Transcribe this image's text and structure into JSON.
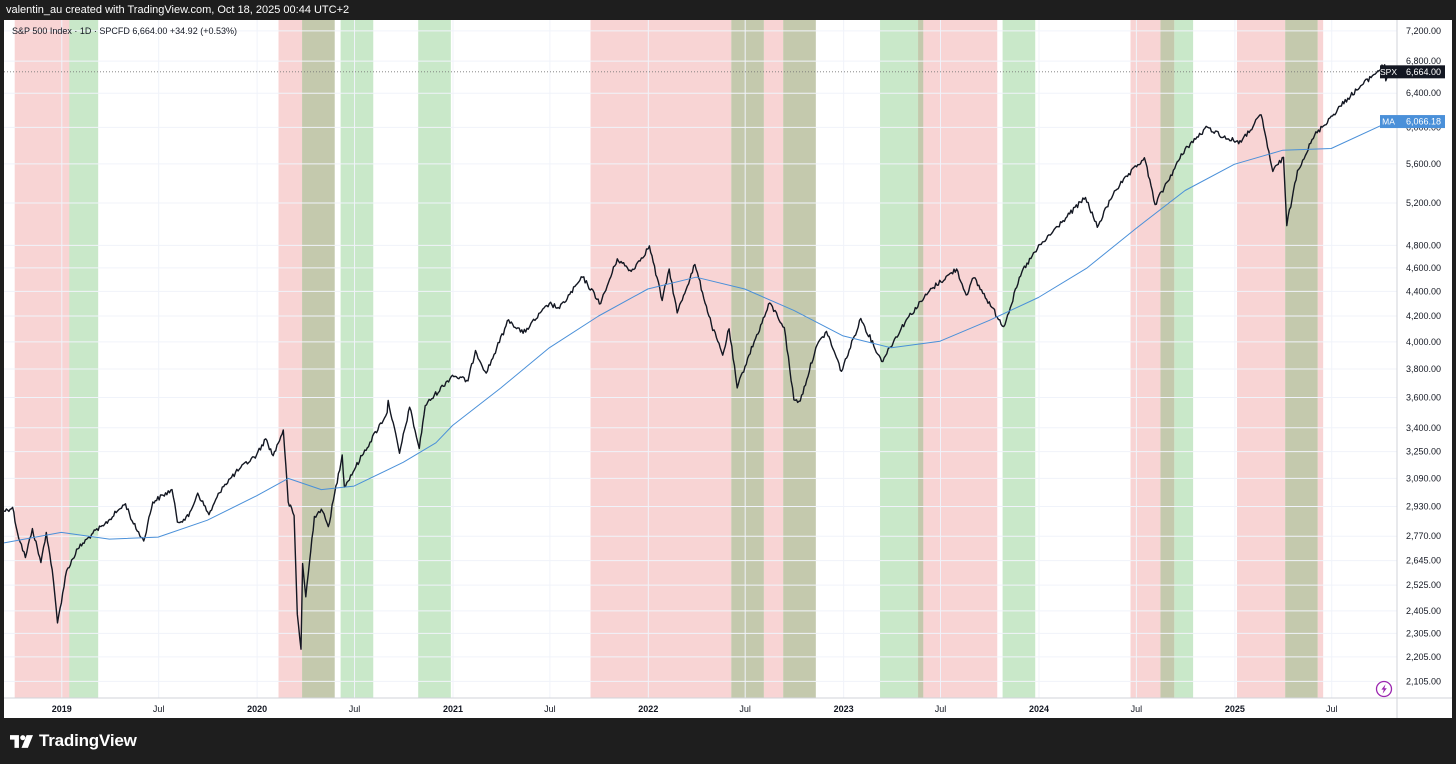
{
  "header": {
    "credit": "valentin_au created with TradingView.com, Oct 18, 2025 00:44 UTC+2"
  },
  "footer": {
    "brand": "TradingView",
    "logo_icon": "tradingview-logo-icon"
  },
  "chart_data": {
    "type": "line",
    "symbol_info": "S&P 500 Index · 1D · SPCFD  6,664.00  +34.92 (+0.53%)",
    "ylog": true,
    "ylim": [
      2040,
      7350
    ],
    "xlim": [
      "2018-09-15",
      "2025-10-31"
    ],
    "grid": true,
    "y_ticks": [
      "7,200.00",
      "6,800.00",
      "6,400.00",
      "6,000.00",
      "5,600.00",
      "5,200.00",
      "4,800.00",
      "4,600.00",
      "4,400.00",
      "4,200.00",
      "4,000.00",
      "3,800.00",
      "3,600.00",
      "3,400.00",
      "3,250.00",
      "3,090.00",
      "2,930.00",
      "2,770.00",
      "2,645.00",
      "2,525.00",
      "2,405.00",
      "2,305.00",
      "2,205.00",
      "2,105.00"
    ],
    "y_tick_values": [
      7200,
      6800,
      6400,
      6000,
      5600,
      5200,
      4800,
      4600,
      4400,
      4200,
      4000,
      3800,
      3600,
      3400,
      3250,
      3090,
      2930,
      2770,
      2645,
      2525,
      2405,
      2305,
      2205,
      2105
    ],
    "x_ticks": [
      {
        "label": "2019",
        "date": "2019-01-01",
        "bold": true
      },
      {
        "label": "Jul",
        "date": "2019-07-01",
        "bold": false
      },
      {
        "label": "2020",
        "date": "2020-01-01",
        "bold": true
      },
      {
        "label": "Jul",
        "date": "2020-07-01",
        "bold": false
      },
      {
        "label": "2021",
        "date": "2021-01-01",
        "bold": true
      },
      {
        "label": "Jul",
        "date": "2021-07-01",
        "bold": false
      },
      {
        "label": "2022",
        "date": "2022-01-01",
        "bold": true
      },
      {
        "label": "Jul",
        "date": "2022-07-01",
        "bold": false
      },
      {
        "label": "2023",
        "date": "2023-01-01",
        "bold": true
      },
      {
        "label": "Jul",
        "date": "2023-07-01",
        "bold": false
      },
      {
        "label": "2024",
        "date": "2024-01-01",
        "bold": true
      },
      {
        "label": "Jul",
        "date": "2024-07-01",
        "bold": false
      },
      {
        "label": "2025",
        "date": "2025-01-01",
        "bold": true
      },
      {
        "label": "Jul",
        "date": "2025-07-01",
        "bold": false
      }
    ],
    "shaded_regions": [
      {
        "start": "2018-10-05",
        "end": "2019-02-15",
        "color": "#f8d4d4"
      },
      {
        "start": "2019-01-15",
        "end": "2019-03-10",
        "color": "#c9e8c9"
      },
      {
        "start": "2020-02-10",
        "end": "2020-03-25",
        "color": "#f8d4d4"
      },
      {
        "start": "2020-03-25",
        "end": "2020-05-25",
        "color": "#c4c9ad"
      },
      {
        "start": "2020-06-05",
        "end": "2020-08-05",
        "color": "#c9e8c9"
      },
      {
        "start": "2020-10-28",
        "end": "2020-12-28",
        "color": "#c9e8c9"
      },
      {
        "start": "2021-09-15",
        "end": "2022-06-05",
        "color": "#f8d4d4"
      },
      {
        "start": "2022-06-05",
        "end": "2022-08-05",
        "color": "#c4c9ad"
      },
      {
        "start": "2022-08-05",
        "end": "2022-09-10",
        "color": "#f8d4d4"
      },
      {
        "start": "2022-09-10",
        "end": "2022-11-10",
        "color": "#c4c9ad"
      },
      {
        "start": "2023-03-10",
        "end": "2023-05-20",
        "color": "#c9e8c9"
      },
      {
        "start": "2023-05-20",
        "end": "2023-05-30",
        "color": "#c4c9ad"
      },
      {
        "start": "2023-05-30",
        "end": "2023-10-15",
        "color": "#f8d4d4"
      },
      {
        "start": "2023-10-25",
        "end": "2023-12-25",
        "color": "#c9e8c9"
      },
      {
        "start": "2024-06-20",
        "end": "2024-08-15",
        "color": "#f8d4d4"
      },
      {
        "start": "2024-08-15",
        "end": "2024-09-10",
        "color": "#c4c9ad"
      },
      {
        "start": "2024-09-10",
        "end": "2024-10-15",
        "color": "#c9e8c9"
      },
      {
        "start": "2025-01-05",
        "end": "2025-04-05",
        "color": "#f8d4d4"
      },
      {
        "start": "2025-04-05",
        "end": "2025-06-05",
        "color": "#c4c9ad"
      },
      {
        "start": "2025-06-05",
        "end": "2025-06-15",
        "color": "#f8d4d4"
      }
    ],
    "series": [
      {
        "name": "SPX",
        "color": "#131722",
        "last_value_label": "6,664.00",
        "points": [
          [
            "2018-09-15",
            2905
          ],
          [
            "2018-10-01",
            2925
          ],
          [
            "2018-10-10",
            2790
          ],
          [
            "2018-10-25",
            2660
          ],
          [
            "2018-11-07",
            2810
          ],
          [
            "2018-11-23",
            2635
          ],
          [
            "2018-12-03",
            2790
          ],
          [
            "2018-12-14",
            2600
          ],
          [
            "2018-12-24",
            2351
          ],
          [
            "2019-01-10",
            2595
          ],
          [
            "2019-01-31",
            2705
          ],
          [
            "2019-02-28",
            2785
          ],
          [
            "2019-03-20",
            2825
          ],
          [
            "2019-04-15",
            2905
          ],
          [
            "2019-04-30",
            2945
          ],
          [
            "2019-05-15",
            2835
          ],
          [
            "2019-06-03",
            2745
          ],
          [
            "2019-06-20",
            2955
          ],
          [
            "2019-07-26",
            3025
          ],
          [
            "2019-08-05",
            2845
          ],
          [
            "2019-08-26",
            2875
          ],
          [
            "2019-09-12",
            3005
          ],
          [
            "2019-10-03",
            2885
          ],
          [
            "2019-10-28",
            3040
          ],
          [
            "2019-11-29",
            3145
          ],
          [
            "2019-12-31",
            3230
          ],
          [
            "2020-01-17",
            3330
          ],
          [
            "2020-01-31",
            3225
          ],
          [
            "2020-02-19",
            3386
          ],
          [
            "2020-02-28",
            2955
          ],
          [
            "2020-03-10",
            2880
          ],
          [
            "2020-03-16",
            2390
          ],
          [
            "2020-03-23",
            2237
          ],
          [
            "2020-03-26",
            2630
          ],
          [
            "2020-04-01",
            2470
          ],
          [
            "2020-04-17",
            2875
          ],
          [
            "2020-04-30",
            2915
          ],
          [
            "2020-05-13",
            2820
          ],
          [
            "2020-06-08",
            3230
          ],
          [
            "2020-06-12",
            3040
          ],
          [
            "2020-07-15",
            3225
          ],
          [
            "2020-08-31",
            3500
          ],
          [
            "2020-09-02",
            3580
          ],
          [
            "2020-09-23",
            3240
          ],
          [
            "2020-10-12",
            3535
          ],
          [
            "2020-10-30",
            3270
          ],
          [
            "2020-11-10",
            3545
          ],
          [
            "2020-12-31",
            3755
          ],
          [
            "2021-01-29",
            3715
          ],
          [
            "2021-02-12",
            3935
          ],
          [
            "2021-03-04",
            3770
          ],
          [
            "2021-04-15",
            4170
          ],
          [
            "2021-05-12",
            4065
          ],
          [
            "2021-06-30",
            4300
          ],
          [
            "2021-07-19",
            4260
          ],
          [
            "2021-08-31",
            4520
          ],
          [
            "2021-10-04",
            4300
          ],
          [
            "2021-11-04",
            4680
          ],
          [
            "2021-11-30",
            4570
          ],
          [
            "2021-12-31",
            4766
          ],
          [
            "2022-01-03",
            4795
          ],
          [
            "2022-01-27",
            4325
          ],
          [
            "2022-02-09",
            4590
          ],
          [
            "2022-02-24",
            4225
          ],
          [
            "2022-03-29",
            4630
          ],
          [
            "2022-04-29",
            4130
          ],
          [
            "2022-05-20",
            3900
          ],
          [
            "2022-06-01",
            4100
          ],
          [
            "2022-06-16",
            3666
          ],
          [
            "2022-07-08",
            3900
          ],
          [
            "2022-08-16",
            4305
          ],
          [
            "2022-09-12",
            4110
          ],
          [
            "2022-09-30",
            3585
          ],
          [
            "2022-10-12",
            3577
          ],
          [
            "2022-11-10",
            3955
          ],
          [
            "2022-11-30",
            4080
          ],
          [
            "2022-12-28",
            3783
          ],
          [
            "2023-02-02",
            4180
          ],
          [
            "2023-03-13",
            3855
          ],
          [
            "2023-04-28",
            4170
          ],
          [
            "2023-06-15",
            4425
          ],
          [
            "2023-07-31",
            4590
          ],
          [
            "2023-08-18",
            4370
          ],
          [
            "2023-09-01",
            4515
          ],
          [
            "2023-10-27",
            4117
          ],
          [
            "2023-11-30",
            4565
          ],
          [
            "2023-12-29",
            4770
          ],
          [
            "2024-02-15",
            5030
          ],
          [
            "2024-03-28",
            5255
          ],
          [
            "2024-04-19",
            4967
          ],
          [
            "2024-05-21",
            5320
          ],
          [
            "2024-07-16",
            5665
          ],
          [
            "2024-08-05",
            5185
          ],
          [
            "2024-09-30",
            5760
          ],
          [
            "2024-11-11",
            6000
          ],
          [
            "2024-12-18",
            5870
          ],
          [
            "2025-01-13",
            5835
          ],
          [
            "2025-02-19",
            6144
          ],
          [
            "2025-03-13",
            5520
          ],
          [
            "2025-04-02",
            5670
          ],
          [
            "2025-04-08",
            4982
          ],
          [
            "2025-04-28",
            5530
          ],
          [
            "2025-05-30",
            5910
          ],
          [
            "2025-07-31",
            6340
          ],
          [
            "2025-09-15",
            6615
          ],
          [
            "2025-10-08",
            6753
          ],
          [
            "2025-10-10",
            6552
          ],
          [
            "2025-10-17",
            6664
          ]
        ]
      },
      {
        "name": "MA",
        "color": "#4a90d9",
        "last_value_label": "6,066.18",
        "points": [
          [
            "2018-09-15",
            2735
          ],
          [
            "2018-12-31",
            2790
          ],
          [
            "2019-03-31",
            2755
          ],
          [
            "2019-06-30",
            2765
          ],
          [
            "2019-09-30",
            2855
          ],
          [
            "2019-12-31",
            2990
          ],
          [
            "2020-02-28",
            3090
          ],
          [
            "2020-04-30",
            3025
          ],
          [
            "2020-06-30",
            3045
          ],
          [
            "2020-09-30",
            3185
          ],
          [
            "2020-11-30",
            3305
          ],
          [
            "2020-12-31",
            3415
          ],
          [
            "2021-03-31",
            3665
          ],
          [
            "2021-06-30",
            3955
          ],
          [
            "2021-09-30",
            4200
          ],
          [
            "2021-12-31",
            4420
          ],
          [
            "2022-03-31",
            4520
          ],
          [
            "2022-06-30",
            4420
          ],
          [
            "2022-09-30",
            4245
          ],
          [
            "2022-12-31",
            4045
          ],
          [
            "2023-03-31",
            3955
          ],
          [
            "2023-06-30",
            4005
          ],
          [
            "2023-09-30",
            4165
          ],
          [
            "2023-12-31",
            4350
          ],
          [
            "2024-03-31",
            4600
          ],
          [
            "2024-06-30",
            4955
          ],
          [
            "2024-09-30",
            5325
          ],
          [
            "2024-12-31",
            5595
          ],
          [
            "2025-03-31",
            5745
          ],
          [
            "2025-06-30",
            5765
          ],
          [
            "2025-10-17",
            6066
          ]
        ]
      }
    ]
  }
}
